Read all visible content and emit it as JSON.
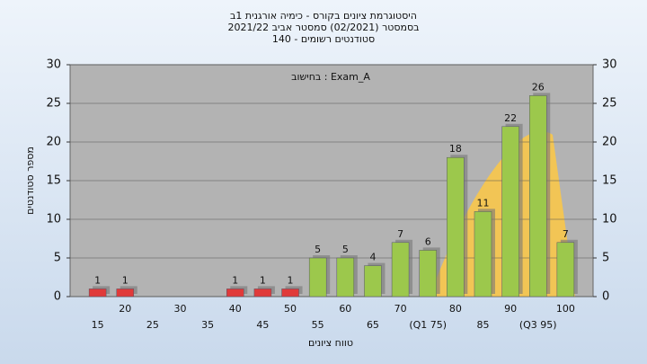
{
  "chart_data": {
    "type": "bar",
    "title": [
      "היסטוגרמת ציונים בקורס - כימיה אורגנית 1ב",
      "בסמסטר (02/2021) סמסטר אביב 2021/22",
      "סטודנטים רשומים - 140"
    ],
    "annotation": "בחישוב : Exam_A",
    "x_label": "טווח ציונים",
    "y_label": "מספר סטודנטים",
    "categories": [
      "15",
      "20",
      "25",
      "30",
      "35",
      "40",
      "45",
      "50",
      "55",
      "60",
      "65",
      "70",
      "(Q1 75)",
      "80",
      "85",
      "90",
      "(Q3 95)",
      "100"
    ],
    "values": [
      1,
      1,
      0,
      0,
      0,
      1,
      1,
      1,
      5,
      5,
      4,
      7,
      6,
      18,
      11,
      22,
      26,
      7
    ],
    "colors": [
      "#e03a3a",
      "#e03a3a",
      "#e03a3a",
      "#e03a3a",
      "#e03a3a",
      "#e03a3a",
      "#e03a3a",
      "#e03a3a",
      "#9cc84c",
      "#9cc84c",
      "#9cc84c",
      "#9cc84c",
      "#9cc84c",
      "#9cc84c",
      "#9cc84c",
      "#9cc84c",
      "#9cc84c",
      "#9cc84c"
    ],
    "ylim": [
      0,
      30
    ],
    "yticks": [
      0,
      5,
      10,
      15,
      20,
      25,
      30
    ],
    "y2lim": [
      0,
      30
    ],
    "y2ticks": [
      0,
      5,
      10,
      15,
      20,
      25,
      30
    ],
    "grid": true
  }
}
